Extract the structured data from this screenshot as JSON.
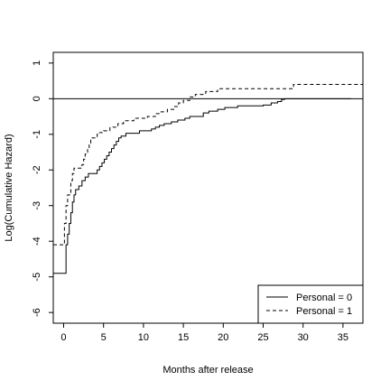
{
  "chart_data": {
    "type": "line",
    "xlabel": "Months after release",
    "ylabel": "Log(Cumulative Hazard)",
    "xlim": [
      -1.3,
      37.5
    ],
    "ylim": [
      -6.3,
      1.3
    ],
    "x_ticks": [
      0,
      5,
      10,
      15,
      20,
      25,
      30,
      35
    ],
    "y_ticks": [
      -6,
      -5,
      -4,
      -3,
      -2,
      -1,
      0,
      1
    ],
    "reference_line_y": 0,
    "grid": false,
    "legend_position": "bottom-right",
    "series": [
      {
        "name": "Personal = 0",
        "style": "solid",
        "color": "#000000",
        "step_points": [
          [
            -1.3,
            -4.9
          ],
          [
            0.3,
            -4.9
          ],
          [
            0.3,
            -4.1
          ],
          [
            0.5,
            -3.8
          ],
          [
            0.7,
            -3.5
          ],
          [
            0.9,
            -3.2
          ],
          [
            1.1,
            -2.9
          ],
          [
            1.3,
            -2.7
          ],
          [
            1.5,
            -2.55
          ],
          [
            1.9,
            -2.45
          ],
          [
            2.3,
            -2.3
          ],
          [
            2.7,
            -2.2
          ],
          [
            3.1,
            -2.1
          ],
          [
            4.2,
            -2.0
          ],
          [
            4.5,
            -1.9
          ],
          [
            4.8,
            -1.8
          ],
          [
            5.1,
            -1.7
          ],
          [
            5.4,
            -1.6
          ],
          [
            5.7,
            -1.5
          ],
          [
            6.0,
            -1.4
          ],
          [
            6.3,
            -1.3
          ],
          [
            6.6,
            -1.2
          ],
          [
            6.9,
            -1.1
          ],
          [
            7.2,
            -1.05
          ],
          [
            7.8,
            -0.97
          ],
          [
            9.5,
            -0.9
          ],
          [
            11.0,
            -0.85
          ],
          [
            11.5,
            -0.8
          ],
          [
            12.0,
            -0.75
          ],
          [
            12.6,
            -0.7
          ],
          [
            13.5,
            -0.65
          ],
          [
            14.3,
            -0.6
          ],
          [
            15.2,
            -0.55
          ],
          [
            15.8,
            -0.5
          ],
          [
            17.5,
            -0.4
          ],
          [
            18.2,
            -0.35
          ],
          [
            19.3,
            -0.3
          ],
          [
            20.2,
            -0.25
          ],
          [
            21.8,
            -0.2
          ],
          [
            25.0,
            -0.18
          ],
          [
            26.0,
            -0.12
          ],
          [
            26.8,
            -0.08
          ],
          [
            27.3,
            -0.02
          ],
          [
            27.7,
            0.0
          ],
          [
            36.0,
            0.0
          ]
        ]
      },
      {
        "name": "Personal = 1",
        "style": "dashed",
        "color": "#000000",
        "step_points": [
          [
            -1.3,
            -4.1
          ],
          [
            0.1,
            -4.1
          ],
          [
            0.1,
            -3.5
          ],
          [
            0.3,
            -3.0
          ],
          [
            0.5,
            -2.7
          ],
          [
            0.9,
            -2.3
          ],
          [
            1.1,
            -2.1
          ],
          [
            1.3,
            -1.95
          ],
          [
            2.3,
            -1.85
          ],
          [
            2.5,
            -1.7
          ],
          [
            2.7,
            -1.55
          ],
          [
            3.0,
            -1.4
          ],
          [
            3.2,
            -1.25
          ],
          [
            3.4,
            -1.1
          ],
          [
            4.2,
            -1.0
          ],
          [
            4.5,
            -0.95
          ],
          [
            5.0,
            -0.9
          ],
          [
            5.8,
            -0.8
          ],
          [
            6.8,
            -0.7
          ],
          [
            7.5,
            -0.62
          ],
          [
            8.8,
            -0.55
          ],
          [
            10.5,
            -0.5
          ],
          [
            11.5,
            -0.42
          ],
          [
            12.2,
            -0.37
          ],
          [
            13.0,
            -0.3
          ],
          [
            13.8,
            -0.22
          ],
          [
            14.4,
            -0.12
          ],
          [
            15.0,
            -0.05
          ],
          [
            15.8,
            0.05
          ],
          [
            16.5,
            0.12
          ],
          [
            17.8,
            0.2
          ],
          [
            19.3,
            0.28
          ],
          [
            28.8,
            0.4
          ],
          [
            37.5,
            0.4
          ]
        ]
      }
    ]
  }
}
